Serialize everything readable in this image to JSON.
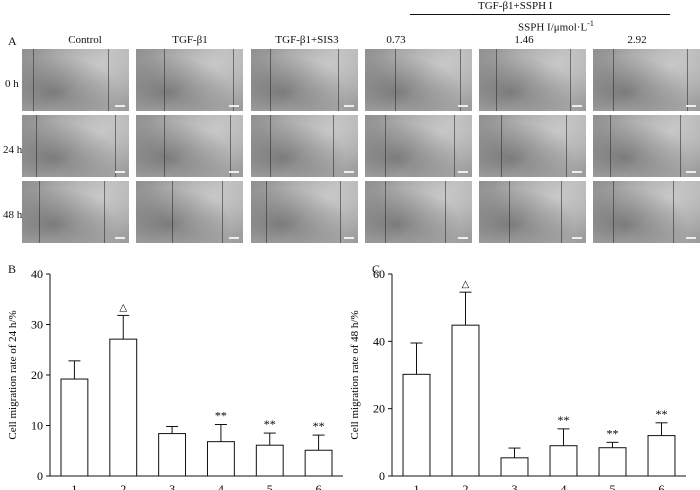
{
  "header": {
    "group_title": "TGF-β1+SSPH I",
    "concentration_label": "SSPH I/μmol·L",
    "concentration_exponent": "-1"
  },
  "panel_labels": {
    "a": "A",
    "b": "B",
    "c": "C"
  },
  "columns": [
    "Control",
    "TGF-β1",
    "TGF-β1+SIS3",
    "0.73",
    "1.46",
    "2.92"
  ],
  "rows": [
    "0 h",
    "24 h",
    "48 h"
  ],
  "chart_data": [
    {
      "type": "bar",
      "panel": "B",
      "categories": [
        "1",
        "2",
        "3",
        "4",
        "5",
        "6"
      ],
      "values": [
        19.2,
        27.1,
        8.4,
        6.8,
        6.1,
        5.1
      ],
      "errors": [
        3.6,
        4.7,
        1.4,
        3.4,
        2.4,
        3.0
      ],
      "significance": [
        "",
        "△",
        "",
        "**",
        "**",
        "**"
      ],
      "ylabel": "Cell migration rate of 24 h/%",
      "xlabel": "",
      "ylim": [
        0,
        40
      ],
      "yticks": [
        0,
        10,
        20,
        30,
        40
      ]
    },
    {
      "type": "bar",
      "panel": "C",
      "categories": [
        "1",
        "2",
        "3",
        "4",
        "5",
        "6"
      ],
      "values": [
        30.2,
        44.8,
        5.4,
        9.0,
        8.4,
        12.0
      ],
      "errors": [
        9.3,
        9.8,
        2.9,
        5.0,
        1.6,
        3.8
      ],
      "significance": [
        "",
        "△",
        "",
        "**",
        "**",
        "**"
      ],
      "ylabel": "Cell migration rate of 48 h/%",
      "xlabel": "",
      "ylim": [
        0,
        60
      ],
      "yticks": [
        0,
        20,
        40,
        60
      ]
    }
  ]
}
